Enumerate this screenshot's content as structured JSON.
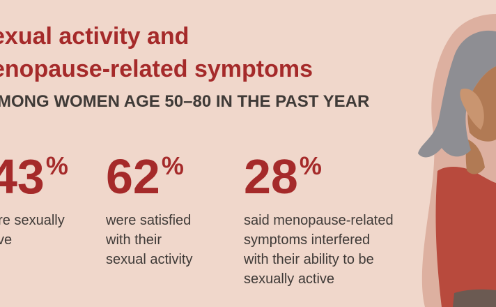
{
  "header": {
    "title_line1": "exual activity and",
    "title_line2": "enopause-related symptoms",
    "subtitle": "MONG WOMEN AGE 50–80 IN THE PAST YEAR"
  },
  "stats": [
    {
      "value": "43",
      "unit": "%",
      "description": "ere sexually\ntive"
    },
    {
      "value": "62",
      "unit": "%",
      "description": "were satisfied\nwith their\nsexual activity"
    },
    {
      "value": "28",
      "unit": "%",
      "description": "said menopause-related\nsymptoms interfered\nwith their ability to be\nsexually active"
    }
  ],
  "colors": {
    "background": "#f0d7cb",
    "accent": "#a52a2a",
    "text": "#3f3a37",
    "hair": "#8e8e93",
    "skin": "#b17a54",
    "top": "#b84a3d",
    "back_shape": "#ddb0a0"
  },
  "illustration": {
    "icon": "woman-illustration-icon"
  }
}
